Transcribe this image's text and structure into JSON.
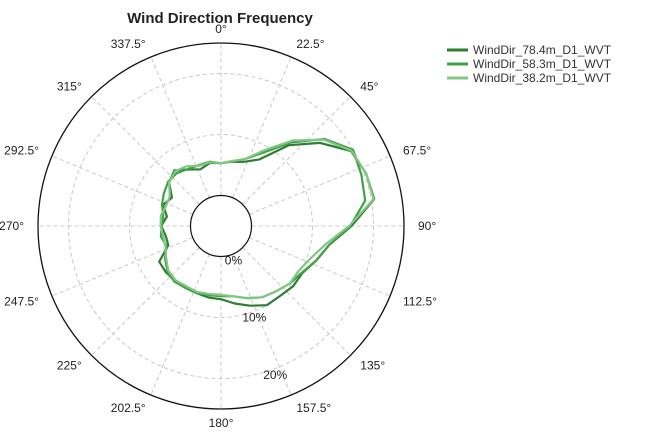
{
  "chart_data": {
    "type": "polar-line",
    "title": "Wind Direction Frequency",
    "direction_labels": [
      "0°",
      "22.5°",
      "45°",
      "67.5°",
      "90°",
      "112.5°",
      "135°",
      "157.5°",
      "180°",
      "202.5°",
      "225°",
      "247.5°",
      "270°",
      "292.5°",
      "315°",
      "337.5°"
    ],
    "direction_degrees": [
      0,
      22.5,
      45,
      67.5,
      90,
      112.5,
      135,
      157.5,
      180,
      202.5,
      225,
      247.5,
      270,
      292.5,
      315,
      337.5
    ],
    "ring_labels": [
      "0%",
      "10%",
      "20%"
    ],
    "ring_values": [
      0,
      10,
      20
    ],
    "center_offset": 5,
    "rmax": 25,
    "grid": true,
    "legend_position": "top-right",
    "sector_width_deg": 10,
    "series": [
      {
        "name": "WindDir_78.4m_D1_WVT",
        "color": "#2e7d32",
        "values": [
          5.3,
          5.7,
          6.2,
          7.6,
          12.3,
          16.2,
          19.6,
          20.3,
          20.5,
          16.4,
          13.0,
          11.6,
          10.4,
          10.4,
          10.0,
          10.0,
          8.9,
          7.9,
          7.0,
          6.9,
          6.7,
          6.7,
          6.7,
          6.8,
          6.7,
          4.2,
          4.2,
          4.8,
          4.0,
          5.1,
          4.3,
          6.1,
          6.9,
          5.7,
          4.9,
          5.5
        ]
      },
      {
        "name": "WindDir_58.3m_D1_WVT",
        "color": "#43a047",
        "values": [
          5.3,
          5.8,
          6.7,
          8.9,
          12.9,
          17.2,
          20.0,
          19.5,
          19.0,
          16.2,
          13.0,
          11.6,
          10.3,
          9.7,
          9.0,
          8.5,
          7.6,
          6.7,
          6.5,
          6.5,
          6.7,
          6.7,
          6.9,
          6.5,
          5.6,
          4.5,
          5.0,
          4.7,
          4.6,
          5.3,
          5.8,
          6.3,
          6.3,
          5.8,
          5.6,
          5.7
        ]
      },
      {
        "name": "WindDir_38.2m_D1_WVT",
        "color": "#81c784",
        "values": [
          5.3,
          5.8,
          6.7,
          9.4,
          13.3,
          17.0,
          19.7,
          20.3,
          20.4,
          16.0,
          12.4,
          10.6,
          9.7,
          9.7,
          9.0,
          8.5,
          7.6,
          6.7,
          6.3,
          6.3,
          6.5,
          6.4,
          6.6,
          6.3,
          5.4,
          4.7,
          4.6,
          4.9,
          5.0,
          4.6,
          4.7,
          6.1,
          6.7,
          6.3,
          5.5,
          5.6
        ]
      }
    ]
  }
}
